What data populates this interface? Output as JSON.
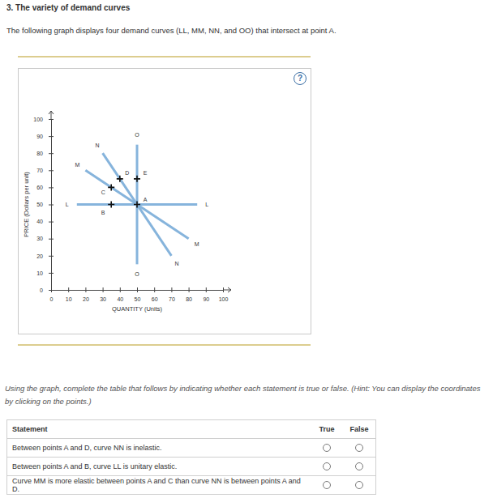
{
  "page": {
    "title": "3. The variety of demand curves",
    "intro": "The following graph displays four demand curves (LL, MM, NN, and OO) that intersect at point A.",
    "help": "?",
    "instruction": "Using the graph, complete the table that follows by indicating whether each statement is true or false. (Hint: You can display the coordinates by clicking on the points.)",
    "table": {
      "header": [
        "Statement",
        "True",
        "False"
      ],
      "rows": [
        "Between points A and D, curve NN is inelastic.",
        "Between points A and B, curve LL is unitary elastic.",
        "Curve MM is more elastic between points A and C than curve NN is between points A and D."
      ]
    }
  },
  "chart_data": {
    "type": "line",
    "xlabel": "QUANTITY (Units)",
    "ylabel": "PRICE (Dollars per unit)",
    "xlim": [
      0,
      100
    ],
    "ylim": [
      0,
      100
    ],
    "xticks": [
      0,
      10,
      20,
      30,
      40,
      50,
      60,
      70,
      80,
      90,
      100
    ],
    "yticks": [
      0,
      10,
      20,
      30,
      40,
      50,
      60,
      70,
      80,
      90,
      100
    ],
    "grid": false,
    "marker": "cross",
    "series": [
      {
        "name": "L",
        "color": "#86b4dc",
        "x": [
          15,
          85
        ],
        "values": [
          50,
          50
        ]
      },
      {
        "name": "M",
        "color": "#86b4dc",
        "x": [
          20,
          80
        ],
        "values": [
          70,
          30
        ]
      },
      {
        "name": "N",
        "color": "#86b4dc",
        "x": [
          30,
          70
        ],
        "values": [
          80,
          20
        ]
      },
      {
        "name": "O",
        "color": "#86b4dc",
        "x": [
          50,
          50
        ],
        "values": [
          85,
          15
        ]
      }
    ],
    "points": [
      {
        "name": "A",
        "x": 50,
        "y": 50
      },
      {
        "name": "B",
        "x": 35,
        "y": 50
      },
      {
        "name": "C",
        "x": 35,
        "y": 60
      },
      {
        "name": "D",
        "x": 40,
        "y": 65
      },
      {
        "name": "E",
        "x": 50,
        "y": 65
      }
    ]
  }
}
